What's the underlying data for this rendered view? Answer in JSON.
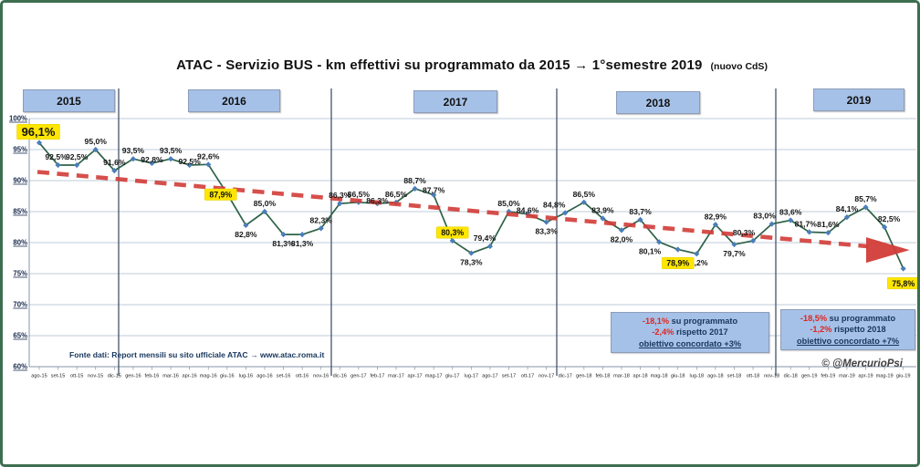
{
  "header": {
    "title": "ATAC - Servizio BUS -  km effettivi su programmato da 2015 → 1°semestre 2019",
    "subtitle": "(nuovo CdS)"
  },
  "years": [
    "2015",
    "2016",
    "2017",
    "2018",
    "2019"
  ],
  "annotations": [
    {
      "value1": "-18,1%",
      "text1": " su programmato",
      "value2": "-2,4%",
      "text2": " rispetto 2017",
      "line3": "obiettivo concordato +3%"
    },
    {
      "value1": "-18,5%",
      "text1": " su programmato",
      "value2": "-1,2%",
      "text2": " rispetto 2018",
      "line3": "obiettivo concordato +7%"
    }
  ],
  "footer": {
    "source": "Fonte dati:  Report mensili su sito ufficiale ATAC →  www.atac.roma.it",
    "credit": "©  @MercurioPsi"
  },
  "chart_data": {
    "type": "line",
    "title": "ATAC - Servizio BUS - km effettivi su programmato da 2015 → 1°semestre 2019 (nuovo CdS)",
    "xlabel": "",
    "ylabel": "",
    "ylim": [
      60,
      100
    ],
    "yticks": [
      100,
      95,
      90,
      85,
      80,
      75,
      70,
      65,
      60
    ],
    "ytick_suffix": "%",
    "grid": true,
    "legend": false,
    "x": [
      "ago-15",
      "set-15",
      "ott-15",
      "nov-15",
      "dic-15",
      "gen-16",
      "feb-16",
      "mar-16",
      "apr-16",
      "mag-16",
      "giu-16",
      "lug-16",
      "ago-16",
      "set-16",
      "ott-16",
      "nov-16",
      "dic-16",
      "gen-17",
      "feb-17",
      "mar-17",
      "apr-17",
      "mag-17",
      "giu-17",
      "lug-17",
      "ago-17",
      "set-17",
      "ott-17",
      "nov-17",
      "dic-17",
      "gen-18",
      "feb-18",
      "mar-18",
      "apr-18",
      "mag-18",
      "giu-18",
      "lug-18",
      "ago-18",
      "set-18",
      "ott-18",
      "nov-18",
      "dic-18",
      "gen-19",
      "feb-19",
      "mar-19",
      "apr-19",
      "mag-19",
      "giu-19"
    ],
    "series": [
      {
        "name": "km effettivi su programmato",
        "values": [
          96.1,
          92.5,
          92.5,
          95.0,
          91.6,
          93.5,
          92.8,
          93.5,
          92.5,
          92.6,
          87.9,
          82.8,
          85.0,
          81.3,
          81.3,
          82.3,
          86.3,
          86.5,
          86.3,
          86.5,
          88.7,
          87.7,
          80.3,
          78.3,
          79.4,
          85.0,
          84.6,
          83.3,
          84.8,
          86.5,
          83.9,
          82.0,
          83.7,
          80.1,
          78.9,
          78.2,
          82.9,
          79.7,
          80.3,
          83.0,
          83.6,
          81.7,
          81.6,
          84.1,
          85.7,
          82.5,
          75.8
        ]
      }
    ],
    "decimal_separator": ",",
    "highlight_indices": [
      0,
      10,
      22,
      34,
      46
    ],
    "labels_below_indices": [
      11,
      13,
      14,
      23,
      27,
      31,
      33,
      35,
      37
    ],
    "trend": {
      "description": "linear downward trend, red dashed with arrow",
      "start_value": 91.4,
      "end_value": 78.8
    },
    "colors": {
      "line": "#2e6247",
      "marker": "#4a7ebb",
      "trend": "#d23c38",
      "highlight_bg": "#ffe600",
      "grid": "#bccbd9",
      "axis": "#8496a8",
      "divider": "#44546a",
      "label_text": "#151515",
      "ytick_text": "#16294d"
    }
  }
}
